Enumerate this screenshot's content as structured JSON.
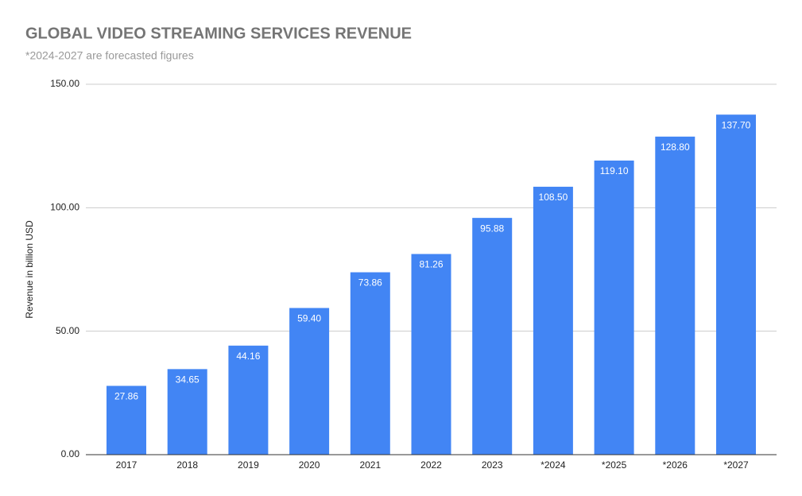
{
  "chart_data": {
    "type": "bar",
    "title": "GLOBAL VIDEO STREAMING SERVICES REVENUE",
    "subtitle": "*2024-2027 are forecasted figures",
    "y_label": "Revenue in billion USD",
    "categories": [
      "2017",
      "2018",
      "2019",
      "2020",
      "2021",
      "2022",
      "2023",
      "*2024",
      "*2025",
      "*2026",
      "*2027"
    ],
    "values": [
      27.86,
      34.65,
      44.16,
      59.4,
      73.86,
      81.26,
      95.88,
      108.5,
      119.1,
      128.8,
      137.7
    ],
    "value_labels": [
      "27.86",
      "34.65",
      "44.16",
      "59.40",
      "73.86",
      "81.26",
      "95.88",
      "108.50",
      "119.10",
      "128.80",
      "137.70"
    ],
    "color": "#4285f4",
    "ylim": [
      0,
      150
    ],
    "yticks": [
      {
        "value": 0,
        "label": "0.00"
      },
      {
        "value": 50,
        "label": "50.00"
      },
      {
        "value": 100,
        "label": "100.00"
      },
      {
        "value": 150,
        "label": "150.00"
      }
    ],
    "grid": true
  }
}
